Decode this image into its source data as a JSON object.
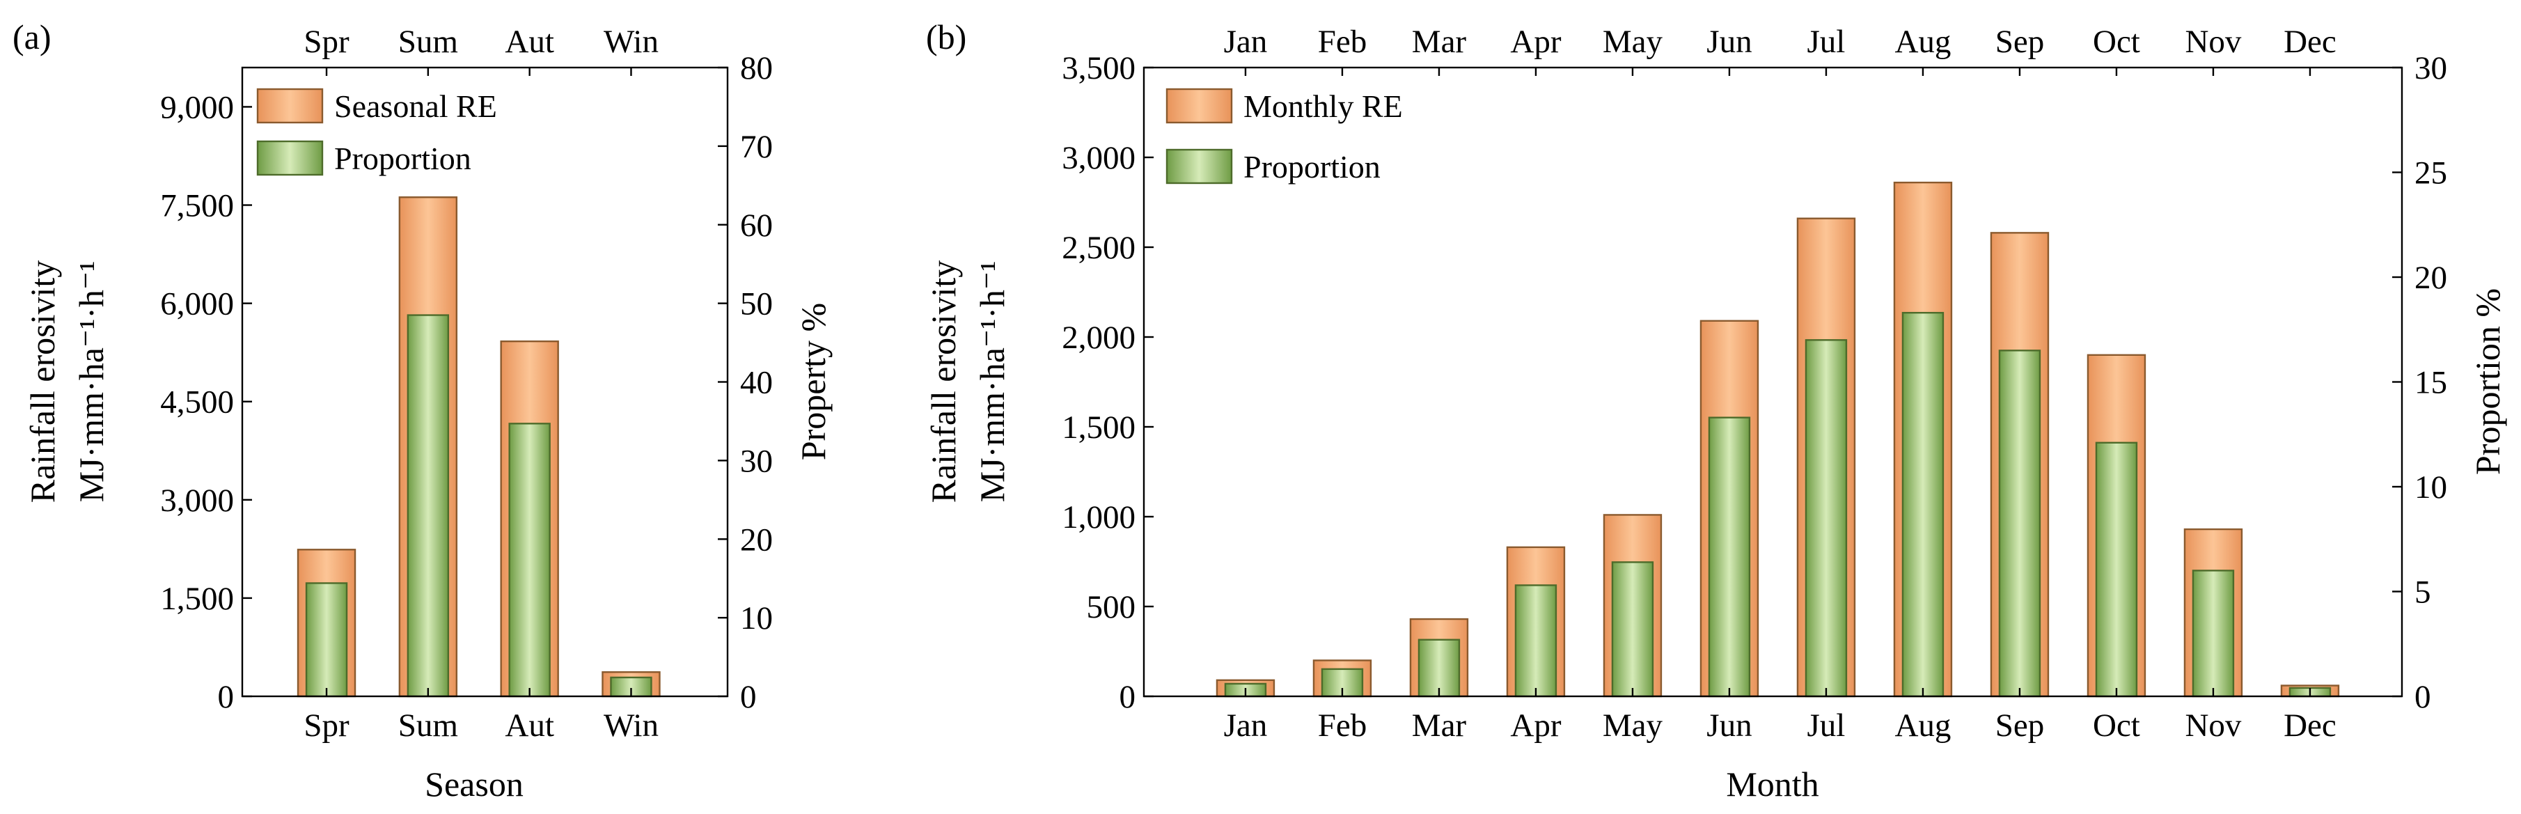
{
  "chart_data": [
    {
      "panel_label": "(a)",
      "type": "bar",
      "categories": [
        "Spr",
        "Sum",
        "Aut",
        "Win"
      ],
      "series": [
        {
          "name": "Seasonal RE",
          "axis": "left",
          "color": "#f0a86a",
          "values": [
            2240,
            7620,
            5420,
            370
          ]
        },
        {
          "name": "Proportion",
          "axis": "right",
          "color": "#8db861",
          "values": [
            14.4,
            48.5,
            34.7,
            2.4
          ]
        }
      ],
      "xlabel": "Season",
      "ylabel_line1": "Rainfall erosivity",
      "ylabel_line2": "MJ·mm·ha⁻¹·h⁻¹",
      "y2label": "Property %",
      "ylim": [
        0,
        9600
      ],
      "y2lim": [
        0,
        80
      ],
      "yticks": [
        0,
        1500,
        3000,
        4500,
        6000,
        7500,
        9000
      ],
      "ytick_labels": [
        "0",
        "1,500",
        "3,000",
        "4,500",
        "6,000",
        "7,500",
        "9,000"
      ],
      "y2ticks": [
        0,
        10,
        20,
        30,
        40,
        50,
        60,
        70,
        80
      ],
      "y2tick_labels": [
        "0",
        "10",
        "20",
        "30",
        "40",
        "50",
        "60",
        "70",
        "80"
      ],
      "legend": [
        "Seasonal RE",
        "Proportion"
      ],
      "legend_position": "top-left"
    },
    {
      "panel_label": "(b)",
      "type": "bar",
      "categories": [
        "Jan",
        "Feb",
        "Mar",
        "Apr",
        "May",
        "Jun",
        "Jul",
        "Aug",
        "Sep",
        "Oct",
        "Nov",
        "Dec"
      ],
      "series": [
        {
          "name": "Monthly RE",
          "axis": "left",
          "color": "#f0a86a",
          "values": [
            90,
            200,
            430,
            830,
            1010,
            2090,
            2660,
            2860,
            2580,
            1900,
            930,
            60
          ]
        },
        {
          "name": "Proportion",
          "axis": "right",
          "color": "#8db861",
          "values": [
            0.6,
            1.3,
            2.7,
            5.3,
            6.4,
            13.3,
            17.0,
            18.3,
            16.5,
            12.1,
            6.0,
            0.4
          ]
        }
      ],
      "xlabel": "Month",
      "ylabel_line1": "Rainfall erosivity",
      "ylabel_line2": "MJ·mm·ha⁻¹·h⁻¹",
      "y2label": "Proportion %",
      "ylim": [
        0,
        3500
      ],
      "y2lim": [
        0,
        30
      ],
      "yticks": [
        0,
        500,
        1000,
        1500,
        2000,
        2500,
        3000,
        3500
      ],
      "ytick_labels": [
        "0",
        "500",
        "1,000",
        "1,500",
        "2,000",
        "2,500",
        "3,000",
        "3,500"
      ],
      "y2ticks": [
        0,
        5,
        10,
        15,
        20,
        25,
        30
      ],
      "y2tick_labels": [
        "0",
        "5",
        "10",
        "15",
        "20",
        "25",
        "30"
      ],
      "legend": [
        "Monthly RE",
        "Proportion"
      ],
      "legend_position": "top-left"
    }
  ]
}
